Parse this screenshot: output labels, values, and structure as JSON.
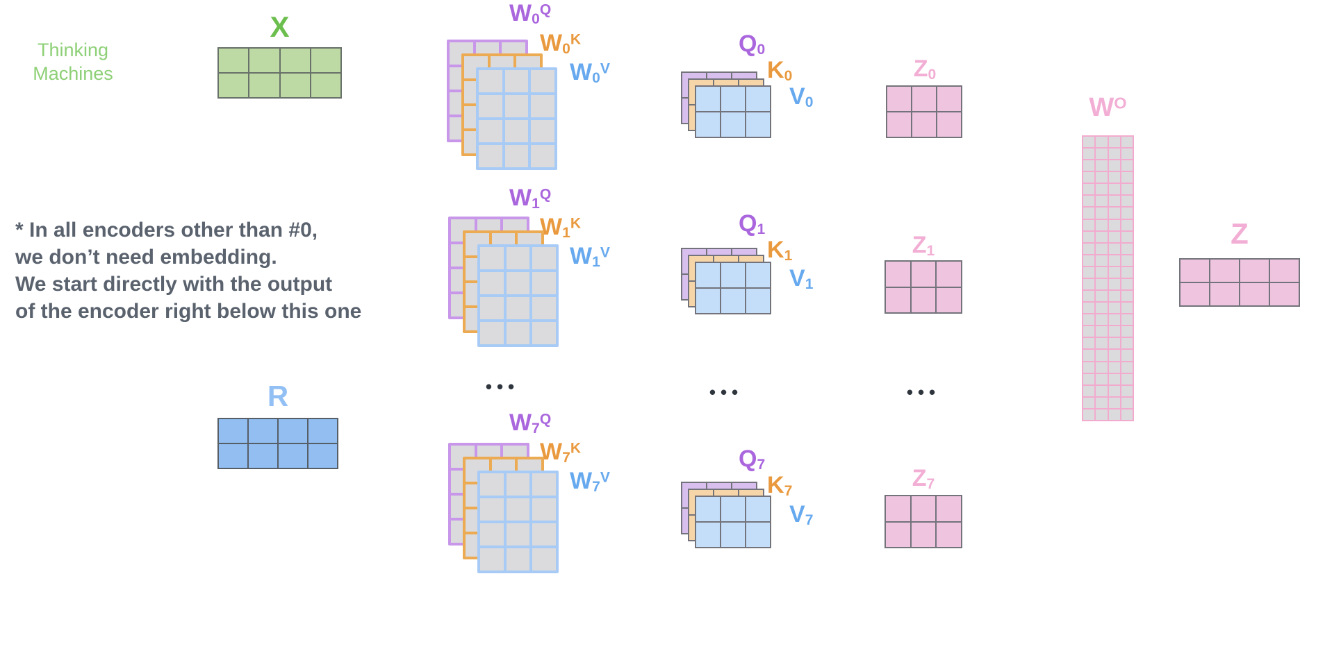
{
  "branding": {
    "line1": "Thinking",
    "line2": "Machines"
  },
  "note": {
    "lines": [
      "* In all encoders other than #0,",
      "we don’t need embedding.",
      "We start directly with the output",
      "of the encoder right below this one"
    ]
  },
  "ellipsis": "•••",
  "palette": {
    "grayFill": "#dbdbdd",
    "greenFill": "#bdd9a4",
    "greenBorder": "#68716a",
    "purpleBorder": "#c897ea",
    "orangeBorder": "#ecaa52",
    "blueBorder": "#a8cbf6",
    "purpleFill": "#d8bfee",
    "orangeFill": "#f6d6a8",
    "blueFill": "#c4ddf8",
    "pinkFill": "#eec4de",
    "pinkBorder": "#f2abce",
    "smallBorder": "#73737b",
    "rFill": "#92bef2",
    "rBorder": "#565e66",
    "labelGreen": "#6cbf4e",
    "labelPurple": "#aa66dd",
    "labelOrange": "#e9993e",
    "labelBlue": "#67a9ee",
    "labelBlueLight": "#93c0f4",
    "labelPink": "#f2aed4",
    "brandGreen": "#8ed077",
    "noteColor": "#5a626e",
    "dotColor": "#2f353d"
  },
  "x_matrix": {
    "label": "X",
    "rows": 2,
    "cols": 4
  },
  "r_matrix": {
    "label": "R",
    "rows": 2,
    "cols": 4
  },
  "wo_matrix": {
    "label_base": "W",
    "label_sup": "O",
    "rows": 24,
    "cols": 4
  },
  "z_matrix": {
    "label": "Z",
    "rows": 2,
    "cols": 4
  },
  "heads": [
    {
      "id": "0",
      "w_labels": [
        {
          "base": "W",
          "sub": "0",
          "sup": "Q"
        },
        {
          "base": "W",
          "sub": "0",
          "sup": "K"
        },
        {
          "base": "W",
          "sub": "0",
          "sup": "V"
        }
      ],
      "qkv_labels": [
        {
          "base": "Q",
          "sub": "0"
        },
        {
          "base": "K",
          "sub": "0"
        },
        {
          "base": "V",
          "sub": "0"
        }
      ],
      "z_label": {
        "base": "Z",
        "sub": "0"
      },
      "w_grid": {
        "rows": 4,
        "cols": 3
      },
      "qkv_grid": {
        "rows": 2,
        "cols": 3
      },
      "z_grid": {
        "rows": 2,
        "cols": 3
      }
    },
    {
      "id": "1",
      "w_labels": [
        {
          "base": "W",
          "sub": "1",
          "sup": "Q"
        },
        {
          "base": "W",
          "sub": "1",
          "sup": "K"
        },
        {
          "base": "W",
          "sub": "1",
          "sup": "V"
        }
      ],
      "qkv_labels": [
        {
          "base": "Q",
          "sub": "1"
        },
        {
          "base": "K",
          "sub": "1"
        },
        {
          "base": "V",
          "sub": "1"
        }
      ],
      "z_label": {
        "base": "Z",
        "sub": "1"
      },
      "w_grid": {
        "rows": 4,
        "cols": 3
      },
      "qkv_grid": {
        "rows": 2,
        "cols": 3
      },
      "z_grid": {
        "rows": 2,
        "cols": 3
      }
    },
    {
      "id": "7",
      "w_labels": [
        {
          "base": "W",
          "sub": "7",
          "sup": "Q"
        },
        {
          "base": "W",
          "sub": "7",
          "sup": "K"
        },
        {
          "base": "W",
          "sub": "7",
          "sup": "V"
        }
      ],
      "qkv_labels": [
        {
          "base": "Q",
          "sub": "7"
        },
        {
          "base": "K",
          "sub": "7"
        },
        {
          "base": "V",
          "sub": "7"
        }
      ],
      "z_label": {
        "base": "Z",
        "sub": "7"
      },
      "w_grid": {
        "rows": 4,
        "cols": 3
      },
      "qkv_grid": {
        "rows": 2,
        "cols": 3
      },
      "z_grid": {
        "rows": 2,
        "cols": 3
      }
    }
  ]
}
